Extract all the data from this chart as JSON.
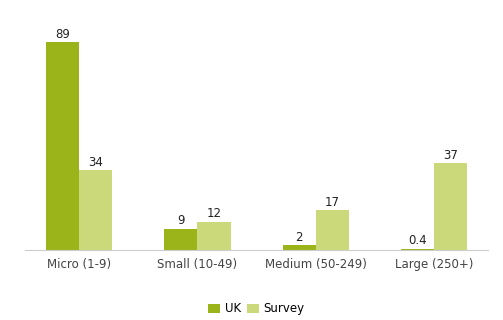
{
  "categories": [
    "Micro (1-9)",
    "Small (10-49)",
    "Medium (50-249)",
    "Large (250+)"
  ],
  "uk_values": [
    89,
    9,
    2,
    0.4
  ],
  "survey_values": [
    34,
    12,
    17,
    37
  ],
  "uk_color": "#9ab41a",
  "survey_color": "#ccd97a",
  "bar_width": 0.28,
  "ylim": [
    0,
    100
  ],
  "legend_labels": [
    "UK",
    "Survey"
  ],
  "value_labels_uk": [
    "89",
    "9",
    "2",
    "0.4"
  ],
  "value_labels_survey": [
    "34",
    "12",
    "17",
    "37"
  ],
  "label_fontsize": 8.5,
  "tick_fontsize": 8.5,
  "legend_fontsize": 8.5,
  "background_color": "#ffffff"
}
